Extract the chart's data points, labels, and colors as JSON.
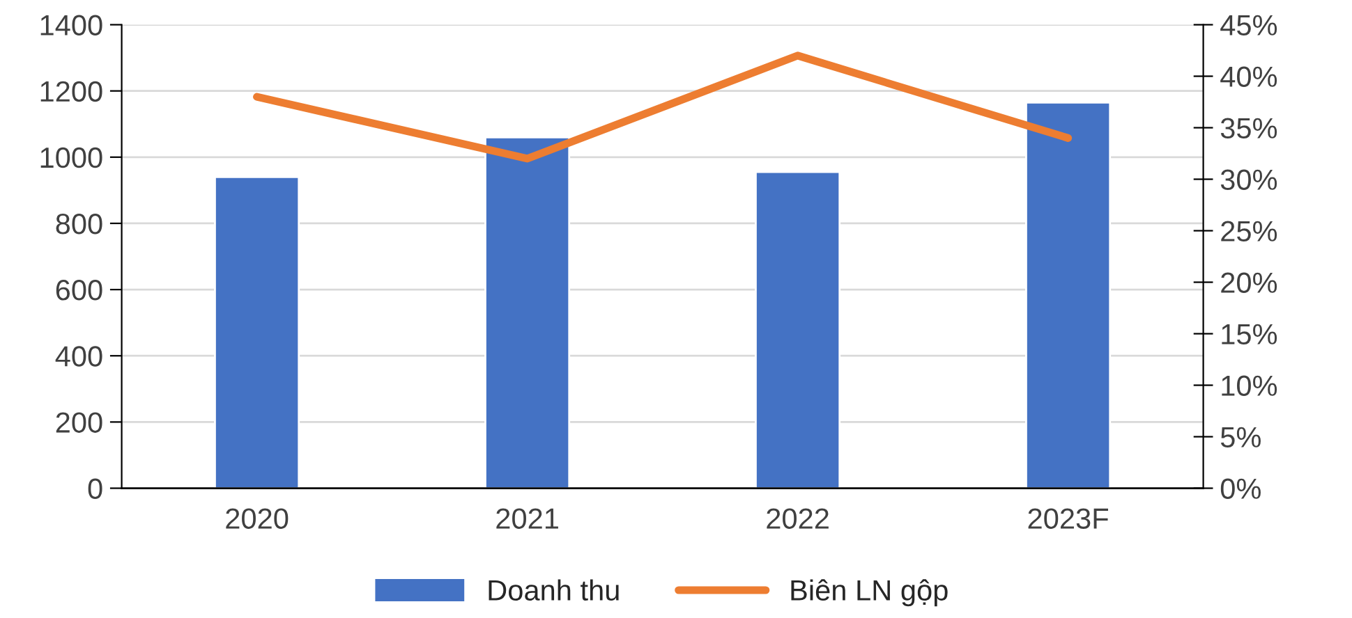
{
  "chart_data": {
    "type": "bar",
    "categories": [
      "2020",
      "2021",
      "2022",
      "2023F"
    ],
    "series": [
      {
        "name": "Doanh thu",
        "color": "#4472c4",
        "values": [
          940,
          1060,
          955,
          1165
        ]
      },
      {
        "name": "Biên LN gộp",
        "color": "#ed7d31",
        "type": "line",
        "axis": "y2",
        "values": [
          38,
          32,
          42,
          34
        ]
      }
    ],
    "ylim": [
      0,
      1400
    ],
    "yticks": [
      0,
      200,
      400,
      600,
      800,
      1000,
      1200,
      1400
    ],
    "y2lim": [
      0,
      45
    ],
    "y2ticks": [
      {
        "value": 0,
        "label": "0%"
      },
      {
        "value": 5,
        "label": "5%"
      },
      {
        "value": 10,
        "label": "10%"
      },
      {
        "value": 15,
        "label": "15%"
      },
      {
        "value": 20,
        "label": "20%"
      },
      {
        "value": 25,
        "label": "25%"
      },
      {
        "value": 30,
        "label": "30%"
      },
      {
        "value": 35,
        "label": "35%"
      },
      {
        "value": 40,
        "label": "40%"
      },
      {
        "value": 45,
        "label": "45%"
      }
    ],
    "grid": "y",
    "legend": "bottom",
    "marker": "none",
    "line_style": "solid"
  }
}
